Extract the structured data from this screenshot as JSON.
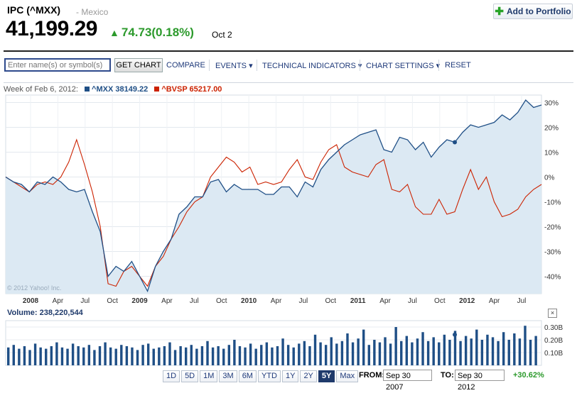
{
  "header": {
    "title": "IPC (^MXX)",
    "exchange": "- Mexico",
    "price": "41,199.29",
    "change": "74.73(0.18%)",
    "date": "Oct 2",
    "add_button": "Add to Portfolio"
  },
  "toolbar": {
    "search_placeholder": "Enter name(s) or symbol(s)",
    "get_chart": "GET CHART",
    "compare": "COMPARE",
    "events": "EVENTS ▾",
    "technical": "TECHNICAL INDICATORS ▾",
    "settings": "CHART SETTINGS ▾",
    "reset": "RESET"
  },
  "legend": {
    "week": "Week of Feb 6, 2012:",
    "mxx": "^MXX 38149.22",
    "bvsp": "^BVSP 65217.00"
  },
  "watermark": "© 2012 Yahoo! Inc.",
  "volume_label": "Volume: 238,220,544",
  "close_glyph": "×",
  "colors": {
    "mxx": "#1f4f86",
    "bvsp": "#cc2200",
    "area": "#dce9f3",
    "up": "#2c9a2c"
  },
  "range_buttons": [
    "1D",
    "5D",
    "1M",
    "3M",
    "6M",
    "YTD",
    "1Y",
    "2Y",
    "5Y",
    "Max"
  ],
  "active_range": "5Y",
  "from_label": "FROM:",
  "from_value": "Sep 30 2007",
  "to_label": "TO:",
  "to_value": "Sep 30 2012",
  "period_change": "+30.62%",
  "chart_data": [
    {
      "type": "line",
      "x_ticks": [
        "2008",
        "Apr",
        "Jul",
        "Oct",
        "2009",
        "Apr",
        "Jul",
        "Oct",
        "2010",
        "Apr",
        "Jul",
        "Oct",
        "2011",
        "Apr",
        "Jul",
        "Oct",
        "2012",
        "Apr",
        "Jul"
      ],
      "y_ticks": [
        "30%",
        "20%",
        "10%",
        "0%",
        "-10%",
        "-20%",
        "-30%",
        "-40%"
      ],
      "ylim": [
        -47,
        33
      ],
      "series": [
        {
          "name": "^MXX",
          "values": [
            0,
            -2,
            -3,
            -6,
            -2,
            -3,
            0,
            -2,
            -5,
            -6,
            -5,
            -14,
            -22,
            -40,
            -36,
            -38,
            -34,
            -40,
            -46,
            -36,
            -30,
            -25,
            -15,
            -12,
            -8,
            -8,
            -2,
            -1,
            -6,
            -3,
            -5,
            -5,
            -5,
            -7,
            -7,
            -4,
            -4,
            -8,
            -2,
            -4,
            3,
            7,
            10,
            13,
            15,
            17,
            18,
            19,
            11,
            10,
            16,
            15,
            11,
            14,
            8,
            12,
            15,
            14,
            18,
            21,
            20,
            21,
            22,
            25,
            23,
            26,
            31,
            28,
            29
          ]
        },
        {
          "name": "^BVSP",
          "values": [
            0,
            -2,
            -4,
            -6,
            -3,
            -2,
            -3,
            0,
            6,
            15,
            5,
            -6,
            -20,
            -43,
            -44,
            -38,
            -36,
            -40,
            -44,
            -36,
            -32,
            -25,
            -20,
            -14,
            -10,
            -8,
            0,
            4,
            8,
            6,
            2,
            4,
            -3,
            -2,
            -3,
            -2,
            3,
            7,
            0,
            -1,
            6,
            11,
            13,
            4,
            2,
            1,
            0,
            5,
            7,
            -5,
            -6,
            -3,
            -12,
            -15,
            -15,
            -9,
            -15,
            -14,
            -5,
            3,
            -5,
            0,
            -10,
            -16,
            -15,
            -13,
            -8,
            -5,
            -3
          ]
        }
      ]
    },
    {
      "type": "bar",
      "y_ticks": [
        "0.30B",
        "0.20B",
        "0.10B"
      ],
      "ylim": [
        0,
        0.35
      ],
      "values": [
        0.14,
        0.16,
        0.13,
        0.15,
        0.12,
        0.17,
        0.14,
        0.13,
        0.15,
        0.18,
        0.14,
        0.13,
        0.17,
        0.15,
        0.14,
        0.16,
        0.12,
        0.15,
        0.18,
        0.14,
        0.13,
        0.16,
        0.15,
        0.14,
        0.12,
        0.16,
        0.17,
        0.13,
        0.14,
        0.15,
        0.18,
        0.12,
        0.15,
        0.14,
        0.16,
        0.13,
        0.15,
        0.19,
        0.14,
        0.15,
        0.13,
        0.16,
        0.2,
        0.15,
        0.14,
        0.17,
        0.13,
        0.16,
        0.18,
        0.14,
        0.15,
        0.21,
        0.16,
        0.14,
        0.17,
        0.19,
        0.15,
        0.24,
        0.18,
        0.16,
        0.22,
        0.17,
        0.19,
        0.25,
        0.18,
        0.21,
        0.28,
        0.16,
        0.2,
        0.18,
        0.22,
        0.17,
        0.3,
        0.19,
        0.23,
        0.18,
        0.21,
        0.26,
        0.19,
        0.22,
        0.18,
        0.24,
        0.2,
        0.27,
        0.19,
        0.23,
        0.21,
        0.28,
        0.2,
        0.24,
        0.22,
        0.19,
        0.26,
        0.2,
        0.25,
        0.21,
        0.31,
        0.2,
        0.23
      ]
    }
  ]
}
